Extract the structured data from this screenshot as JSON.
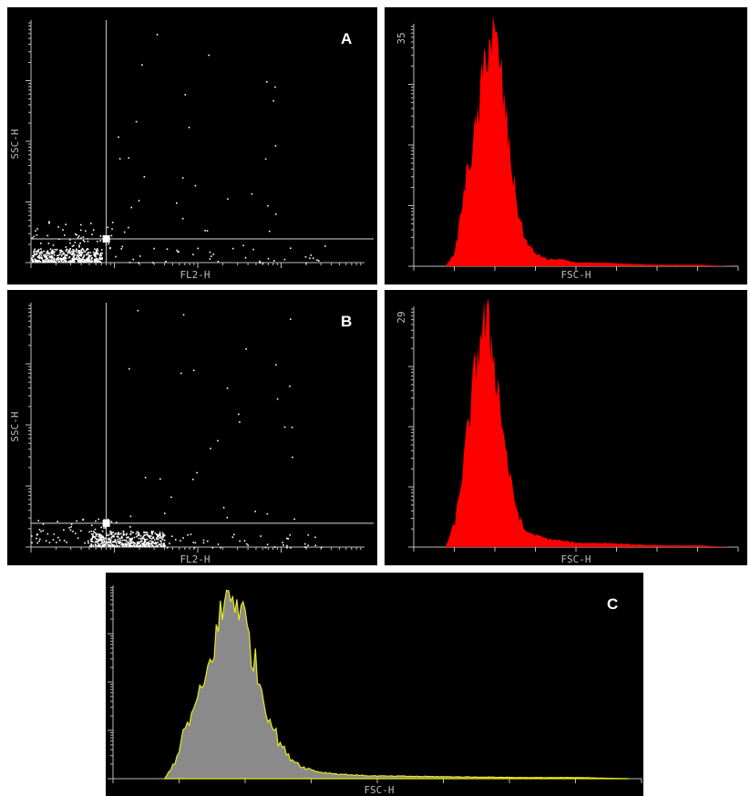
{
  "chart_data": [
    {
      "panel": "A-dot",
      "type": "scatter",
      "panel_label": "A",
      "xlabel": "FL2-H",
      "ylabel": "SSC-H",
      "x_scale": "log",
      "xlim": [
        1,
        10000
      ],
      "ylim": [
        0,
        1024
      ],
      "gate": {
        "x": 8,
        "y": 100
      },
      "colors": {
        "points": "#ffffff",
        "gate": "#d8d8d8",
        "background": "#000000"
      },
      "clusters": [
        {
          "x_decade": [
            0.0,
            0.85
          ],
          "y": [
            5,
            60
          ],
          "count": 450
        },
        {
          "x_decade": [
            0.0,
            1.0
          ],
          "y": [
            60,
            180
          ],
          "count": 60
        },
        {
          "x_decade": [
            1.0,
            3.6
          ],
          "y": [
            0,
            80
          ],
          "count": 40
        },
        {
          "x_decade": [
            1.0,
            3.0
          ],
          "y": [
            120,
            1024
          ],
          "count": 30
        }
      ]
    },
    {
      "panel": "A-hist",
      "type": "area",
      "xlabel": "FSC-H",
      "ymax_label": "35",
      "xlim": [
        0,
        1024
      ],
      "ylim": [
        0,
        35
      ],
      "colors": {
        "fill": "#ff0000",
        "background": "#000000"
      },
      "x": [
        100,
        130,
        150,
        170,
        190,
        210,
        230,
        250,
        270,
        290,
        310,
        330,
        350,
        380,
        420,
        460,
        520,
        600,
        700,
        800,
        900,
        1000
      ],
      "values": [
        0,
        2,
        8,
        14,
        18,
        24,
        32,
        33,
        30,
        22,
        14,
        8,
        4,
        2,
        1,
        1,
        0.5,
        0.5,
        0.3,
        0.2,
        0.2,
        0
      ]
    },
    {
      "panel": "B-dot",
      "type": "scatter",
      "panel_label": "B",
      "xlabel": "FL2-H",
      "ylabel": "SSC-H",
      "x_scale": "log",
      "xlim": [
        1,
        10000
      ],
      "ylim": [
        0,
        1024
      ],
      "gate": {
        "x": 8,
        "y": 100
      },
      "colors": {
        "points": "#ffffff",
        "gate": "#d8d8d8",
        "background": "#000000"
      },
      "clusters": [
        {
          "x_decade": [
            0.7,
            1.6
          ],
          "y": [
            5,
            70
          ],
          "count": 450
        },
        {
          "x_decade": [
            0.0,
            1.2
          ],
          "y": [
            20,
            120
          ],
          "count": 60
        },
        {
          "x_decade": [
            1.5,
            3.5
          ],
          "y": [
            0,
            60
          ],
          "count": 45
        },
        {
          "x_decade": [
            1.0,
            3.2
          ],
          "y": [
            120,
            1024
          ],
          "count": 30
        }
      ]
    },
    {
      "panel": "B-hist",
      "type": "area",
      "xlabel": "FSC-H",
      "ymax_label": "29",
      "xlim": [
        0,
        1024
      ],
      "ylim": [
        0,
        29
      ],
      "colors": {
        "fill": "#ff0000",
        "background": "#000000"
      },
      "x": [
        100,
        130,
        150,
        170,
        190,
        210,
        230,
        250,
        270,
        290,
        310,
        330,
        350,
        380,
        420,
        460,
        520,
        600,
        700,
        800,
        900,
        1000
      ],
      "values": [
        0,
        3,
        8,
        14,
        20,
        26,
        27,
        24,
        18,
        12,
        7,
        4,
        2,
        1.5,
        1,
        0.8,
        0.5,
        0.5,
        0.3,
        0.2,
        0.2,
        0
      ]
    },
    {
      "panel": "C-overlay",
      "type": "area",
      "panel_label": "C",
      "xlabel": "FSC-H",
      "xlim": [
        0,
        1024
      ],
      "ylim": [
        0,
        35
      ],
      "colors": {
        "fill": "#8a8a8a",
        "outline": "#e8e81a",
        "background": "#000000"
      },
      "x": [
        100,
        120,
        140,
        160,
        180,
        200,
        220,
        240,
        260,
        280,
        300,
        320,
        340,
        370,
        400,
        440,
        500,
        600,
        700,
        800,
        900,
        1000
      ],
      "values": [
        0,
        3,
        9,
        13,
        18,
        26,
        33,
        33,
        27,
        19,
        12,
        7,
        4,
        2,
        1.2,
        0.8,
        0.5,
        0.4,
        0.3,
        0.2,
        0.2,
        0
      ]
    }
  ]
}
